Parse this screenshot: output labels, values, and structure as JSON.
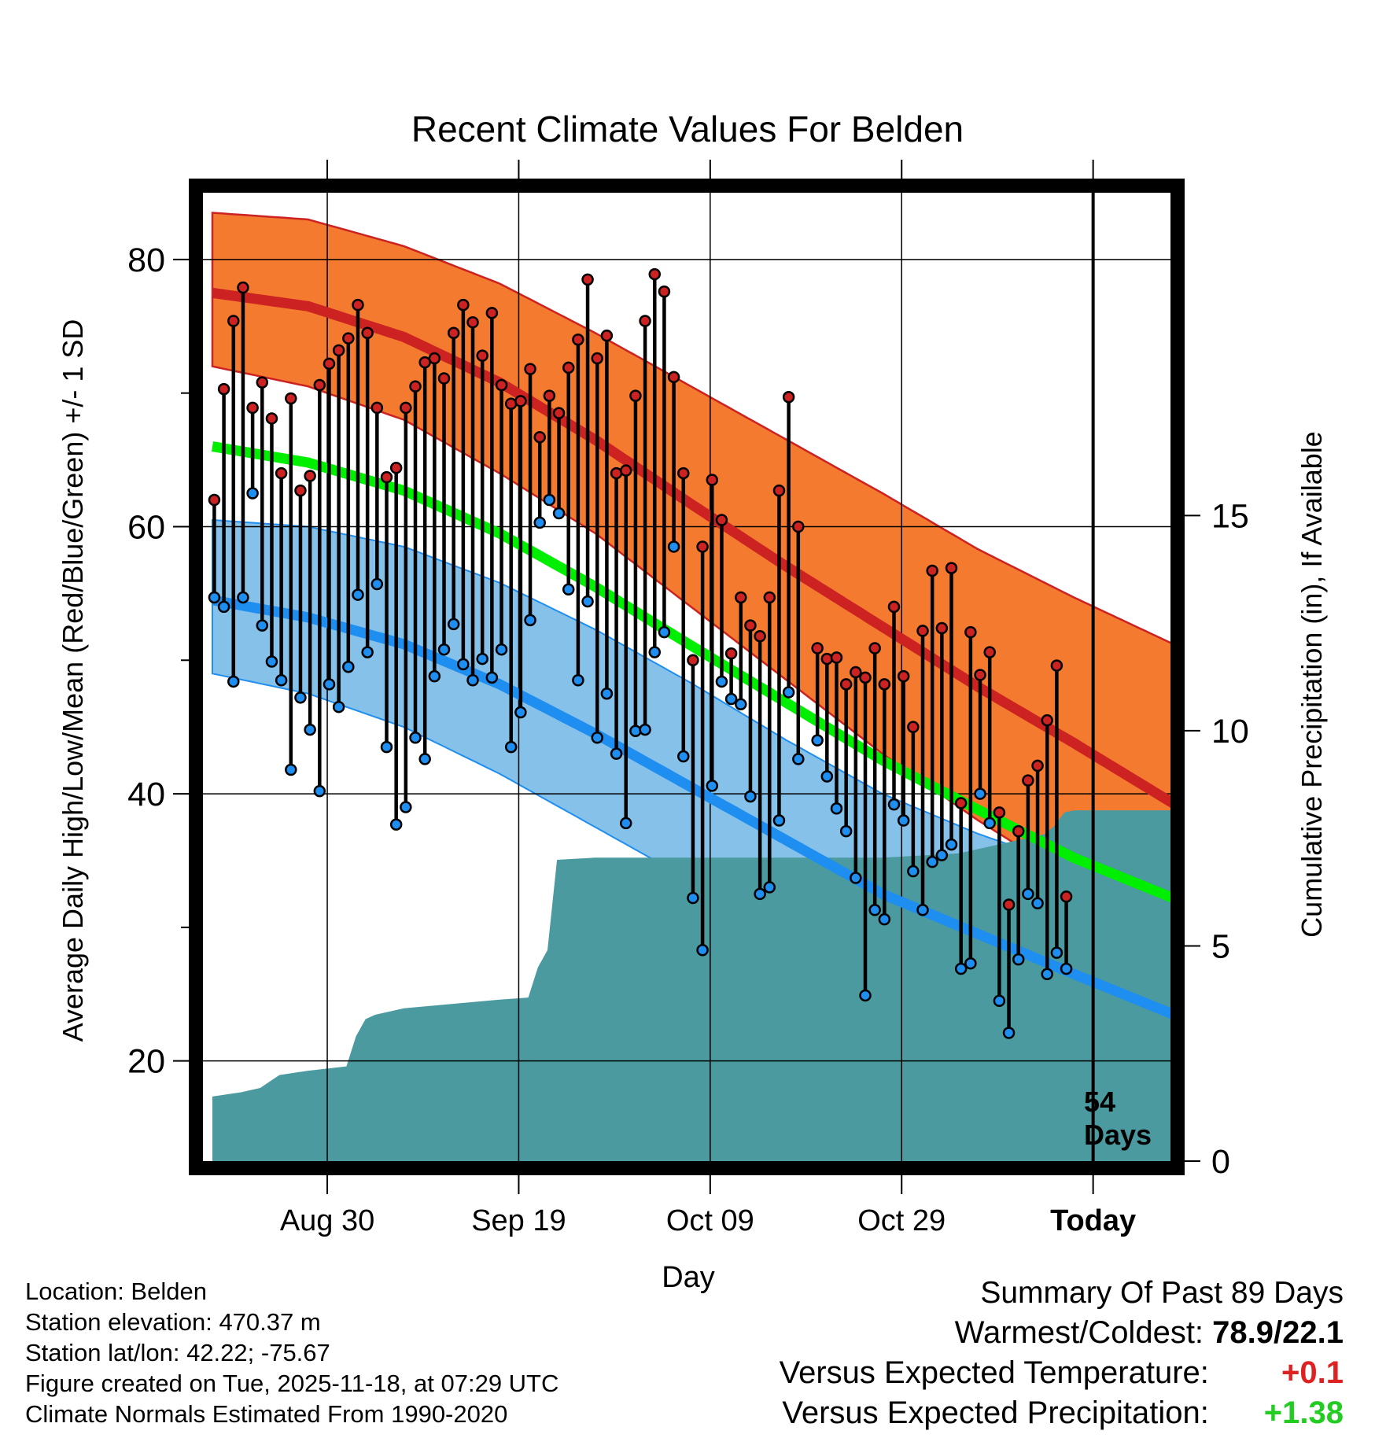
{
  "chart_data": {
    "type": "line",
    "title": "Recent Climate Values For Belden",
    "xlabel": "Day",
    "ylabel": "Average Daily High/Low/Mean (Red/Blue/Green) +/- 1 SD",
    "ylabel_right": "Cumulative Precipitation (in), If Available",
    "ylim": [
      12.5,
      85
    ],
    "ylim_right": [
      0,
      22.5
    ],
    "xlim": [
      0,
      101
    ],
    "x_ticks": [
      {
        "day": 12,
        "label": "Aug 30"
      },
      {
        "day": 32,
        "label": "Sep 19"
      },
      {
        "day": 52,
        "label": "Oct 09"
      },
      {
        "day": 72,
        "label": "Oct 29"
      },
      {
        "day": 92,
        "label": "Today"
      }
    ],
    "y_ticks": [
      20,
      40,
      60,
      80
    ],
    "y_minor_ticks": [
      30,
      50,
      70
    ],
    "y_ticks_right": [
      0,
      5,
      10,
      15
    ],
    "today_day": 92,
    "today_label_line1": "54",
    "today_label_line2": "Days",
    "grid": true,
    "normals": {
      "x": [
        0,
        10,
        20,
        30,
        40,
        50,
        60,
        70,
        80,
        90,
        101
      ],
      "high": [
        77.5,
        76.5,
        74.2,
        70.8,
        66.5,
        61.7,
        57,
        52.5,
        48,
        43.8,
        39
      ],
      "high_upper": [
        83.5,
        83,
        81,
        78.2,
        74.5,
        70.5,
        66.5,
        62.5,
        58.3,
        54.7,
        51
      ],
      "high_lower": [
        72,
        70.5,
        68,
        64,
        59.5,
        54,
        48.5,
        43,
        38,
        33.5,
        29
      ],
      "low": [
        54.5,
        53.2,
        51.2,
        48.2,
        44.5,
        40.5,
        36.5,
        32.5,
        29.5,
        26.5,
        23.3
      ],
      "low_upper": [
        60.5,
        60,
        58.5,
        55.8,
        52.3,
        48.3,
        44,
        40,
        37,
        34.5,
        32.5
      ],
      "low_lower": [
        49,
        47.5,
        45,
        41.5,
        37.5,
        33.5,
        29.8,
        26.7,
        23,
        19.5,
        15
      ],
      "mean": [
        66,
        64.8,
        62.7,
        59.5,
        55.5,
        51.1,
        46.8,
        42.5,
        38.8,
        35.2,
        32
      ]
    },
    "daily": {
      "high": [
        62.0,
        70.3,
        75.4,
        77.9,
        68.9,
        70.8,
        68.1,
        64.0,
        69.6,
        62.7,
        63.8,
        70.6,
        72.2,
        73.2,
        74.1,
        76.6,
        74.5,
        68.9,
        63.7,
        64.4,
        68.9,
        70.5,
        72.3,
        72.6,
        71.1,
        74.5,
        76.6,
        75.3,
        72.8,
        76.0,
        70.6,
        69.2,
        69.4,
        71.8,
        66.7,
        69.8,
        68.5,
        71.9,
        74.0,
        78.5,
        72.6,
        74.3,
        64.0,
        64.2,
        69.8,
        75.4,
        78.9,
        77.6,
        71.2,
        64.0,
        50.0,
        58.5,
        63.5,
        60.5,
        50.5,
        54.7,
        52.6,
        51.8,
        54.7,
        62.7,
        69.7,
        60.0,
        null,
        50.9,
        50.1,
        50.2,
        48.2,
        49.1,
        48.7,
        50.9,
        48.2,
        54.0,
        48.8,
        45.0,
        52.2,
        56.7,
        52.4,
        56.9,
        39.3,
        52.1,
        48.9,
        50.6,
        38.6,
        31.7,
        37.2,
        41.0,
        42.1,
        45.5,
        49.6,
        32.3
      ],
      "low": [
        54.7,
        54.0,
        48.4,
        54.7,
        62.5,
        52.6,
        49.9,
        48.5,
        41.8,
        47.2,
        44.8,
        40.2,
        48.2,
        46.5,
        49.5,
        54.9,
        50.6,
        55.7,
        43.5,
        37.7,
        39.0,
        44.2,
        42.6,
        48.8,
        50.8,
        52.7,
        49.7,
        48.5,
        50.1,
        48.7,
        50.8,
        43.5,
        46.1,
        53.0,
        60.3,
        62.0,
        61.0,
        55.3,
        48.5,
        54.4,
        44.2,
        47.5,
        43.0,
        37.8,
        44.7,
        44.8,
        50.6,
        52.1,
        58.5,
        42.8,
        32.2,
        28.3,
        40.6,
        48.4,
        47.1,
        46.7,
        39.8,
        32.5,
        33.0,
        38.0,
        47.6,
        42.6,
        null,
        44.0,
        41.3,
        38.9,
        37.2,
        33.7,
        24.9,
        31.3,
        30.6,
        39.2,
        38.0,
        34.2,
        31.3,
        34.9,
        35.4,
        36.2,
        26.9,
        27.3,
        40.0,
        37.8,
        24.5,
        22.1,
        27.6,
        32.5,
        31.8,
        26.5,
        28.1,
        26.9
      ]
    },
    "precip": {
      "day": [
        0,
        3,
        5,
        6,
        7,
        10,
        14,
        15,
        16,
        17,
        20,
        25,
        30,
        33,
        34,
        35,
        36,
        40,
        50,
        60,
        70,
        78,
        82,
        84,
        85,
        86,
        87,
        88,
        89,
        90,
        101
      ],
      "value": [
        1.5,
        1.6,
        1.7,
        1.85,
        2.0,
        2.1,
        2.2,
        2.9,
        3.3,
        3.4,
        3.55,
        3.65,
        3.75,
        3.8,
        4.5,
        4.9,
        7.0,
        7.05,
        7.05,
        7.05,
        7.05,
        7.15,
        7.35,
        7.45,
        7.5,
        7.55,
        7.6,
        7.8,
        8.1,
        8.15,
        8.15
      ]
    }
  },
  "footer": {
    "location": "Location: Belden",
    "elevation": "Station elevation: 470.37 m",
    "latlon": "Station lat/lon: 42.22; -75.67",
    "created": "Figure created on Tue, 2025-11-18, at 07:29 UTC",
    "normals_source": "Climate Normals Estimated From 1990-2020"
  },
  "summary": {
    "title": "Summary Of Past 89 Days",
    "warm_cold_label": "Warmest/Coldest:",
    "warm_cold_value": "78.9/22.1",
    "temp_label": "Versus Expected Temperature:",
    "temp_value": "+0.1",
    "precip_label": "Versus Expected Precipitation:",
    "precip_value": "+1.38"
  },
  "colors": {
    "high_band": "#f47a2f",
    "high_line": "#cc2222",
    "low_band": "#86c1ea",
    "low_line": "#1e8ef0",
    "mean_line": "#00ee00",
    "precip": "#4a9aa0",
    "temp_positive": "#dd2222",
    "precip_positive": "#22cc22"
  }
}
